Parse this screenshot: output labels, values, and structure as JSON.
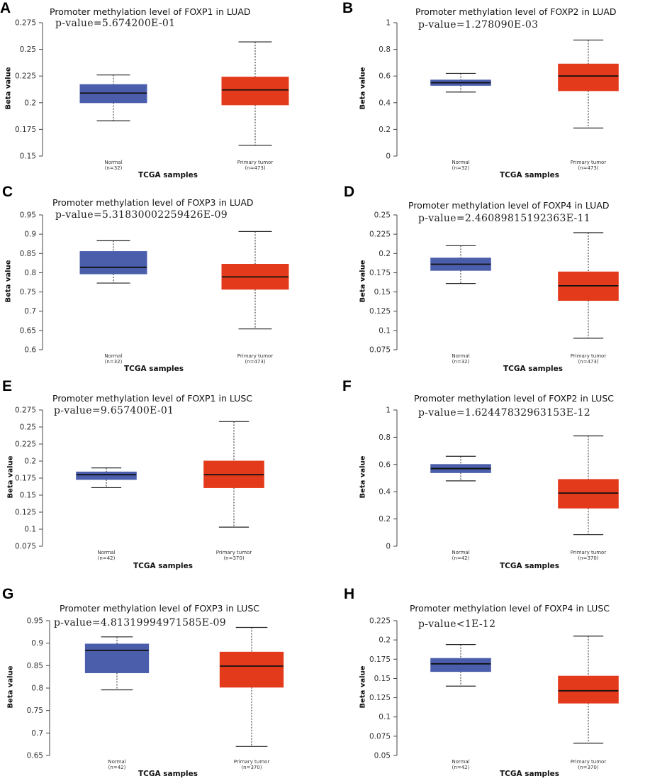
{
  "colors": {
    "normal": "#4b5eab",
    "tumor": "#e43a1c",
    "axis": "#444444"
  },
  "chart_data": [
    {
      "type": "box",
      "panel_label": "A",
      "title": "Promoter methylation level of FOXP1 in LUAD",
      "p_value": "p-value=5.674200E-01",
      "ylabel": "Beta value",
      "xlabel": "TCGA samples",
      "ylim": [
        0.15,
        0.275
      ],
      "yticks": [
        "0.15",
        "0.175",
        "0.2",
        "0.225",
        "0.25",
        "0.275"
      ],
      "categories": [
        {
          "name": "Normal",
          "n": "(n=32)"
        },
        {
          "name": "Primary tumor",
          "n": "(n=473)"
        }
      ],
      "boxes": [
        {
          "min": 0.183,
          "q1": 0.2,
          "median": 0.209,
          "q3": 0.217,
          "max": 0.226
        },
        {
          "min": 0.16,
          "q1": 0.198,
          "median": 0.212,
          "q3": 0.224,
          "max": 0.257
        }
      ]
    },
    {
      "type": "box",
      "panel_label": "B",
      "title": "Promoter methylation level of FOXP2 in LUAD",
      "p_value": "p-value=1.278090E-03",
      "ylabel": "Beta value",
      "xlabel": "TCGA samples",
      "ylim": [
        0,
        1
      ],
      "yticks": [
        "0",
        "0.2",
        "0.4",
        "0.6",
        "0.8",
        "1"
      ],
      "categories": [
        {
          "name": "Normal",
          "n": "(n=32)"
        },
        {
          "name": "Primary tumor",
          "n": "(n=473)"
        }
      ],
      "boxes": [
        {
          "min": 0.48,
          "q1": 0.53,
          "median": 0.55,
          "q3": 0.57,
          "max": 0.62
        },
        {
          "min": 0.21,
          "q1": 0.49,
          "median": 0.6,
          "q3": 0.69,
          "max": 0.87
        }
      ]
    },
    {
      "type": "box",
      "panel_label": "C",
      "title": "Promoter methylation level of FOXP3 in LUAD",
      "p_value": "p-value=5.31830002259426E-09",
      "ylabel": "Beta value",
      "xlabel": "TCGA samples",
      "ylim": [
        0.6,
        0.95
      ],
      "yticks": [
        "0.6",
        "0.65",
        "0.7",
        "0.75",
        "0.8",
        "0.85",
        "0.9",
        "0.95"
      ],
      "categories": [
        {
          "name": "Normal",
          "n": "(n=32)"
        },
        {
          "name": "Primary tumor",
          "n": "(n=473)"
        }
      ],
      "boxes": [
        {
          "min": 0.773,
          "q1": 0.797,
          "median": 0.814,
          "q3": 0.855,
          "max": 0.883
        },
        {
          "min": 0.654,
          "q1": 0.757,
          "median": 0.789,
          "q3": 0.822,
          "max": 0.907
        }
      ]
    },
    {
      "type": "box",
      "panel_label": "D",
      "title": "Promoter methylation level of FOXP4 in LUAD",
      "p_value": "p-value=2.46089815192363E-11",
      "ylabel": "Beta value",
      "xlabel": "TCGA samples",
      "ylim": [
        0.075,
        0.25
      ],
      "yticks": [
        "0.075",
        "0.1",
        "0.125",
        "0.15",
        "0.175",
        "0.2",
        "0.225",
        "0.25"
      ],
      "categories": [
        {
          "name": "Normal",
          "n": "(n=32)"
        },
        {
          "name": "Primary tumor",
          "n": "(n=473)"
        }
      ],
      "boxes": [
        {
          "min": 0.161,
          "q1": 0.178,
          "median": 0.186,
          "q3": 0.194,
          "max": 0.21
        },
        {
          "min": 0.09,
          "q1": 0.139,
          "median": 0.158,
          "q3": 0.176,
          "max": 0.227
        }
      ]
    },
    {
      "type": "box",
      "panel_label": "E",
      "title": "Promoter methylation level of FOXP1 in LUSC",
      "p_value": "p-value=9.657400E-01",
      "ylabel": "Beta value",
      "xlabel": "TCGA samples",
      "ylim": [
        0.075,
        0.275
      ],
      "yticks": [
        "0.075",
        "0.1",
        "0.125",
        "0.15",
        "0.175",
        "0.2",
        "0.225",
        "0.25",
        "0.275"
      ],
      "categories": [
        {
          "name": "Normal",
          "n": "(n=42)"
        },
        {
          "name": "Primary tumor",
          "n": "(n=370)"
        }
      ],
      "boxes": [
        {
          "min": 0.161,
          "q1": 0.173,
          "median": 0.18,
          "q3": 0.184,
          "max": 0.19
        },
        {
          "min": 0.103,
          "q1": 0.161,
          "median": 0.18,
          "q3": 0.2,
          "max": 0.258
        }
      ]
    },
    {
      "type": "box",
      "panel_label": "F",
      "title": "Promoter methylation level of FOXP2 in LUSC",
      "p_value": "p-value=1.62447832963153E-12",
      "ylabel": "Beta value",
      "xlabel": "TCGA samples",
      "ylim": [
        0,
        1
      ],
      "yticks": [
        "0",
        "0.2",
        "0.4",
        "0.6",
        "0.8",
        "1"
      ],
      "categories": [
        {
          "name": "Normal",
          "n": "(n=42)"
        },
        {
          "name": "Primary tumor",
          "n": "(n=370)"
        }
      ],
      "boxes": [
        {
          "min": 0.48,
          "q1": 0.54,
          "median": 0.57,
          "q3": 0.6,
          "max": 0.66
        },
        {
          "min": 0.085,
          "q1": 0.28,
          "median": 0.39,
          "q3": 0.49,
          "max": 0.81
        }
      ]
    },
    {
      "type": "box",
      "panel_label": "G",
      "title": "Promoter methylation level of FOXP3 in LUSC",
      "p_value": "p-value=4.81319994971585E-09",
      "ylabel": "Beta value",
      "xlabel": "TCGA samples",
      "ylim": [
        0.65,
        0.95
      ],
      "yticks": [
        "0.65",
        "0.7",
        "0.75",
        "0.8",
        "0.85",
        "0.9",
        "0.95"
      ],
      "categories": [
        {
          "name": "Normal",
          "n": "(n=42)"
        },
        {
          "name": "Primary tumor",
          "n": "(n=370)"
        }
      ],
      "boxes": [
        {
          "min": 0.796,
          "q1": 0.834,
          "median": 0.884,
          "q3": 0.898,
          "max": 0.914
        },
        {
          "min": 0.67,
          "q1": 0.802,
          "median": 0.849,
          "q3": 0.88,
          "max": 0.935
        }
      ]
    },
    {
      "type": "box",
      "panel_label": "H",
      "title": "Promoter methylation level of FOXP4 in LUSC",
      "p_value": "p-value<1E-12",
      "ylabel": "Beta value",
      "xlabel": "TCGA samples",
      "ylim": [
        0.05,
        0.225
      ],
      "yticks": [
        "0.05",
        "0.075",
        "0.1",
        "0.125",
        "0.15",
        "0.175",
        "0.2",
        "0.225"
      ],
      "categories": [
        {
          "name": "Normal",
          "n": "(n=42)"
        },
        {
          "name": "Primary tumor",
          "n": "(n=370)"
        }
      ],
      "boxes": [
        {
          "min": 0.14,
          "q1": 0.159,
          "median": 0.169,
          "q3": 0.176,
          "max": 0.194
        },
        {
          "min": 0.066,
          "q1": 0.118,
          "median": 0.134,
          "q3": 0.153,
          "max": 0.205
        }
      ]
    }
  ]
}
